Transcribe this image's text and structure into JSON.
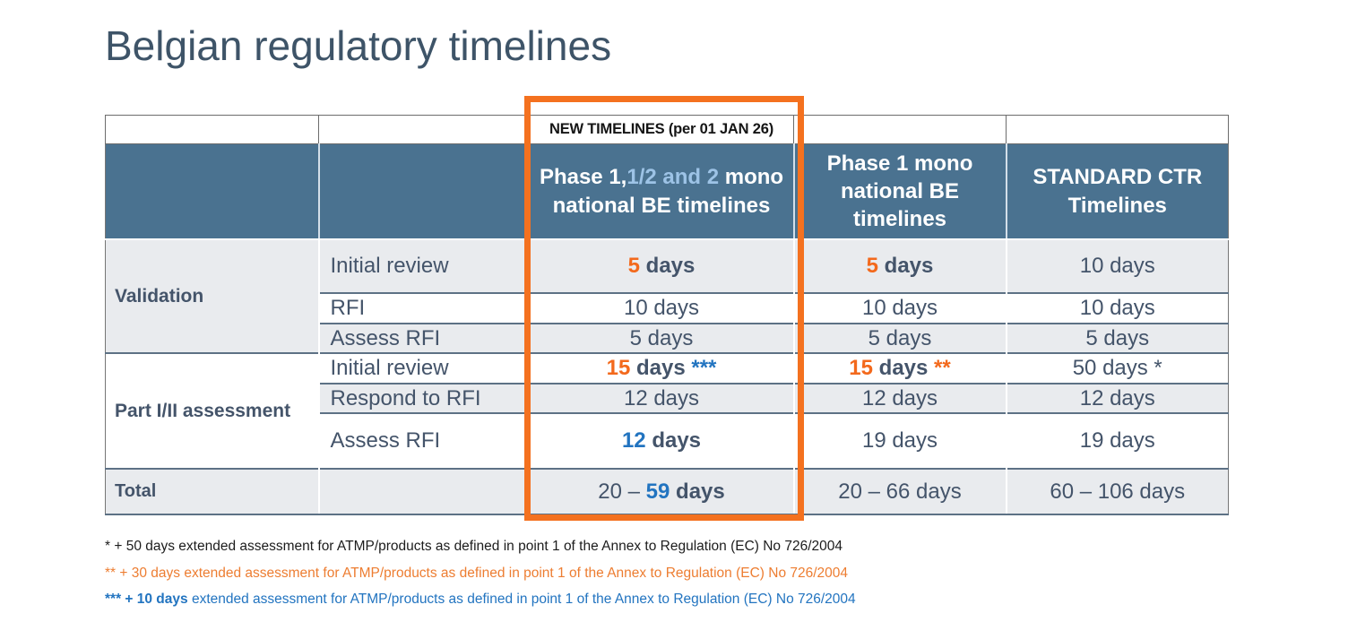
{
  "title": "Belgian regulatory timelines",
  "colors": {
    "header_bg": "#4A7290",
    "header_light_blue_text": "#9DC3E6",
    "accent_orange_number": "#F3691C",
    "accent_orange_footnote": "#ED7D31",
    "accent_blue": "#2274C0",
    "highlight_box_border": "#F4711F",
    "row_alt_bg": "#E9EBEE",
    "text_dark": "#44546A",
    "title_color": "#3E5468"
  },
  "table": {
    "banner": "NEW TIMELINES (per 01 JAN 26)",
    "headers": {
      "phase_mixed": [
        {
          "t": "Phase 1,",
          "cls": ""
        },
        {
          "t": "1/2 and 2",
          "cls": "lt"
        },
        {
          "t": " mono national BE timelines",
          "cls": ""
        }
      ],
      "phase1_mono": "Phase 1 mono national BE timelines",
      "standard_ctr": "STANDARD CTR Timelines"
    },
    "sections": [
      {
        "label": "Validation",
        "rows": [
          {
            "step": "Initial review",
            "new_be": [
              {
                "t": "5",
                "cls": "o b"
              },
              {
                "t": " days",
                "cls": "b"
              }
            ],
            "p1_be": [
              {
                "t": "5",
                "cls": "o b"
              },
              {
                "t": " days",
                "cls": "b"
              }
            ],
            "ctr": [
              {
                "t": "10 days",
                "cls": ""
              }
            ]
          },
          {
            "step": "RFI",
            "new_be": [
              {
                "t": "10 days",
                "cls": ""
              }
            ],
            "p1_be": [
              {
                "t": "10 days",
                "cls": ""
              }
            ],
            "ctr": [
              {
                "t": "10 days",
                "cls": ""
              }
            ]
          },
          {
            "step": "Assess RFI",
            "new_be": [
              {
                "t": "5 days",
                "cls": ""
              }
            ],
            "p1_be": [
              {
                "t": "5 days",
                "cls": ""
              }
            ],
            "ctr": [
              {
                "t": "5 days",
                "cls": ""
              }
            ]
          }
        ]
      },
      {
        "label": "Part I/II assessment",
        "rows": [
          {
            "step": "Initial review",
            "new_be": [
              {
                "t": "15",
                "cls": "o b"
              },
              {
                "t": " days ",
                "cls": "b"
              },
              {
                "t": "***",
                "cls": "bl b"
              }
            ],
            "p1_be": [
              {
                "t": "15",
                "cls": "o b"
              },
              {
                "t": " days ",
                "cls": "b"
              },
              {
                "t": "**",
                "cls": "o b"
              }
            ],
            "ctr": [
              {
                "t": "50 days *",
                "cls": ""
              }
            ]
          },
          {
            "step": "Respond to RFI",
            "new_be": [
              {
                "t": "12 days",
                "cls": ""
              }
            ],
            "p1_be": [
              {
                "t": "12 days",
                "cls": ""
              }
            ],
            "ctr": [
              {
                "t": "12 days",
                "cls": ""
              }
            ]
          },
          {
            "step": "Assess RFI",
            "new_be": [
              {
                "t": "12",
                "cls": "bl b"
              },
              {
                "t": " days",
                "cls": "b"
              }
            ],
            "p1_be": [
              {
                "t": "19 days",
                "cls": ""
              }
            ],
            "ctr": [
              {
                "t": "19 days",
                "cls": ""
              }
            ]
          }
        ]
      }
    ],
    "total": {
      "label": "Total",
      "new_be": [
        {
          "t": "20 – ",
          "cls": ""
        },
        {
          "t": "59",
          "cls": "bl b"
        },
        {
          "t": " days",
          "cls": "b"
        }
      ],
      "p1_be": [
        {
          "t": "20 – 66 days",
          "cls": ""
        }
      ],
      "ctr": [
        {
          "t": "60 – 106 days",
          "cls": ""
        }
      ]
    }
  },
  "footnotes": [
    {
      "parts": [
        {
          "t": "* + 50 days extended assessment for ATMP/products as defined in point 1 of the Annex to Regulation (EC) No 726/2004",
          "cls": ""
        }
      ]
    },
    {
      "parts": [
        {
          "t": "** + 30 days extended assessment for ATMP/products as defined in point 1 of the Annex to Regulation (EC) No 726/2004",
          "cls": ""
        }
      ]
    },
    {
      "parts": [
        {
          "t": "*** + 10 days",
          "cls": "b"
        },
        {
          "t": " extended assessment for ATMP/products as defined in point 1 of the Annex to Regulation (EC) No 726/2004",
          "cls": ""
        }
      ]
    }
  ]
}
